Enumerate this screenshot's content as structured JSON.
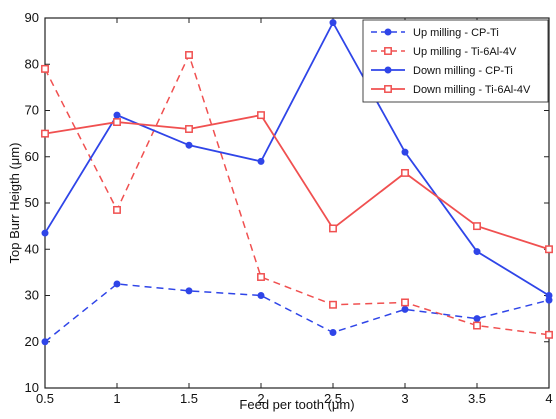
{
  "chart_data": {
    "type": "line",
    "title": "",
    "xlabel": "Feed per tooth (μm)",
    "ylabel": "Top Burr Heigth (μm)",
    "xlim": [
      0.5,
      4
    ],
    "ylim": [
      10,
      90
    ],
    "xticks": [
      0.5,
      1,
      1.5,
      2,
      2.5,
      3,
      3.5,
      4
    ],
    "yticks": [
      10,
      20,
      30,
      40,
      50,
      60,
      70,
      80,
      90
    ],
    "xtick_labels": [
      "0.5",
      "1",
      "1.5",
      "2",
      "2.5",
      "3",
      "3.5",
      "4"
    ],
    "ytick_labels": [
      "10",
      "20",
      "30",
      "40",
      "50",
      "60",
      "70",
      "80",
      "90"
    ],
    "x": [
      0.5,
      1,
      1.5,
      2,
      2.5,
      3,
      3.5,
      4
    ],
    "grid": false,
    "legend_position": "top-right",
    "series": [
      {
        "name": "Up milling - CP-Ti",
        "values": [
          20,
          32.5,
          31,
          30,
          22,
          27,
          25,
          29
        ],
        "color": "#2f45e8",
        "marker": "circle",
        "dashed": true
      },
      {
        "name": "Up milling - Ti-6Al-4V",
        "values": [
          79,
          48.5,
          82,
          34,
          28,
          28.5,
          23.5,
          21.5
        ],
        "color": "#f05050",
        "marker": "square",
        "dashed": true
      },
      {
        "name": "Down milling - CP-Ti",
        "values": [
          43.5,
          69,
          62.5,
          59,
          89,
          61,
          39.5,
          30
        ],
        "color": "#2f45e8",
        "marker": "circle",
        "dashed": false
      },
      {
        "name": "Down milling - Ti-6Al-4V",
        "values": [
          65,
          67.5,
          66,
          69,
          44.5,
          56.5,
          45,
          40
        ],
        "color": "#f05050",
        "marker": "square",
        "dashed": false
      }
    ]
  }
}
